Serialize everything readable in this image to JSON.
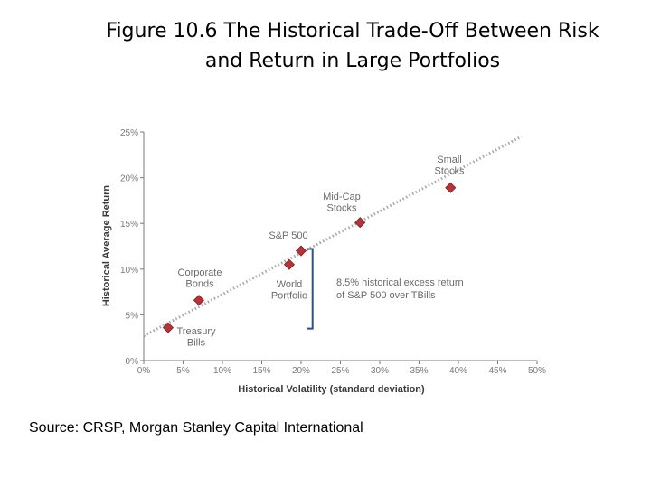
{
  "page": {
    "title_line1": "Figure 10.6  The Historical Trade-Off Between Risk",
    "title_line2": "and Return in Large Portfolios",
    "source": "Source: CRSP, Morgan Stanley Capital International"
  },
  "colors": {
    "marker": "#b5333a",
    "trend": "#a8a8a8",
    "bracket": "#2f4f8f",
    "axis": "#7a7a7a"
  },
  "chart_data": {
    "type": "scatter",
    "xlabel": "Historical Volatility (standard deviation)",
    "ylabel": "Historical Average Return",
    "xlim": [
      0,
      50
    ],
    "ylim": [
      0,
      25
    ],
    "x_ticks": [
      "0%",
      "5%",
      "10%",
      "15%",
      "20%",
      "25%",
      "30%",
      "35%",
      "40%",
      "45%",
      "50%"
    ],
    "y_ticks": [
      "0%",
      "5%",
      "10%",
      "15%",
      "20%",
      "25%"
    ],
    "grid": false,
    "points": [
      {
        "label_lines": [
          "Treasury",
          "Bills"
        ],
        "x": 3.1,
        "y": 3.6
      },
      {
        "label_lines": [
          "Corporate",
          "Bonds"
        ],
        "x": 7.0,
        "y": 6.6
      },
      {
        "label_lines": [
          "World",
          "Portfolio"
        ],
        "x": 18.5,
        "y": 10.5
      },
      {
        "label_lines": [
          "S&P 500"
        ],
        "x": 20.0,
        "y": 12.0
      },
      {
        "label_lines": [
          "Mid-Cap",
          "Stocks"
        ],
        "x": 27.5,
        "y": 15.1
      },
      {
        "label_lines": [
          "Small",
          "Stocks"
        ],
        "x": 39.0,
        "y": 18.9
      }
    ],
    "trend_line": {
      "x": [
        0,
        48
      ],
      "y": [
        2.7,
        24.5
      ]
    },
    "annotation": {
      "lines": [
        "8.5% historical excess return",
        "of S&P 500 over TBills"
      ],
      "from_y": 3.6,
      "to_y": 12.0,
      "x": 21.0
    }
  }
}
